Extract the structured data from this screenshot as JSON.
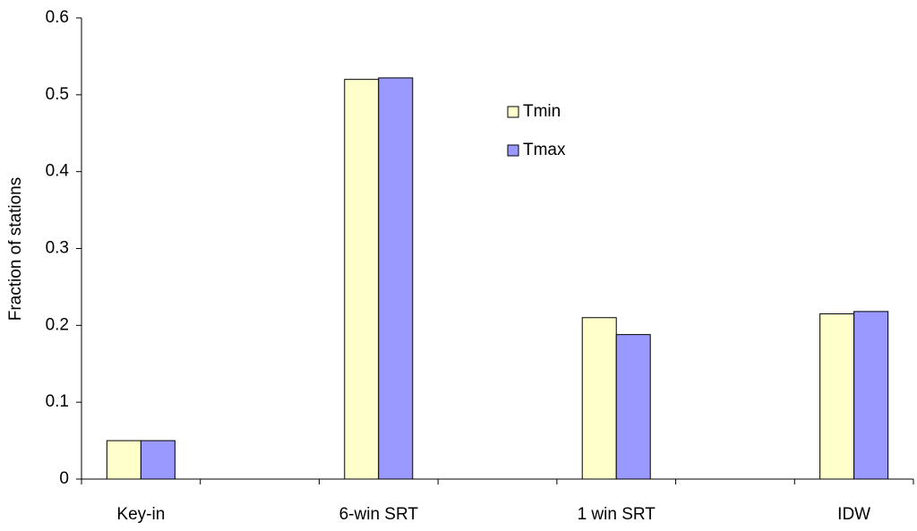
{
  "chart_data": {
    "type": "bar",
    "y_label": "Fraction of stations",
    "categories": [
      "Key-in",
      null,
      "6-win SRT",
      null,
      "1 win SRT",
      null,
      "IDW"
    ],
    "series": [
      {
        "name": "Tmin",
        "color": "#ffffcc",
        "values": [
          0.05,
          null,
          0.52,
          null,
          0.21,
          null,
          0.215
        ]
      },
      {
        "name": "Tmax",
        "color": "#9999ff",
        "values": [
          0.05,
          null,
          0.522,
          null,
          0.188,
          null,
          0.218
        ]
      }
    ],
    "ylim": [
      0,
      0.6
    ],
    "yticks": [
      0,
      0.1,
      0.2,
      0.3,
      0.4,
      0.5,
      0.6
    ],
    "grid": false
  }
}
